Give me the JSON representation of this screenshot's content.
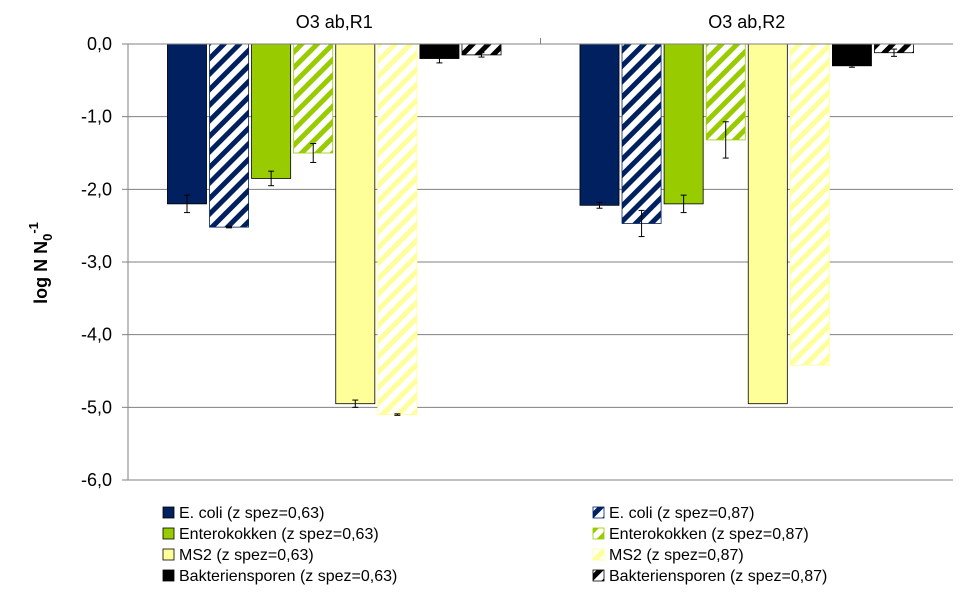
{
  "chart_data": {
    "type": "bar",
    "ylabel": "log N N",
    "ylabel_sub": "0",
    "ylabel_sup": "-1",
    "ylim": [
      -6,
      0
    ],
    "yticks": [
      "0,0",
      "-1,0",
      "-2,0",
      "-3,0",
      "-4,0",
      "-5,0",
      "-6,0"
    ],
    "ytick_values": [
      0,
      -1,
      -2,
      -3,
      -4,
      -5,
      -6
    ],
    "grid": true,
    "legend_position": "bottom",
    "categories": [
      "O3 ab,R1",
      "O3 ab,R2"
    ],
    "series": [
      {
        "name": "E. coli (z spez=0,63)",
        "values": [
          -2.2,
          -2.22
        ],
        "errors": [
          0.12,
          0.04
        ],
        "color": "#002060",
        "pattern": "solid"
      },
      {
        "name": "E. coli  (z spez=0,87)",
        "values": [
          -2.52,
          -2.47
        ],
        "errors": [
          0.01,
          0.18
        ],
        "color": "#002060",
        "pattern": "stripe"
      },
      {
        "name": "Enterokokken (z spez=0,63)",
        "values": [
          -1.85,
          -2.2
        ],
        "errors": [
          0.1,
          0.12
        ],
        "color": "#99CC00",
        "pattern": "solid"
      },
      {
        "name": "Enterokokken (z spez=0,87)",
        "values": [
          -1.5,
          -1.32
        ],
        "errors": [
          0.13,
          0.25
        ],
        "color": "#99CC00",
        "pattern": "stripe"
      },
      {
        "name": "MS2 (z spez=0,63)",
        "values": [
          -4.95,
          -4.95
        ],
        "errors": [
          0.05,
          0.0
        ],
        "color": "#FFFF99",
        "pattern": "solid"
      },
      {
        "name": "MS2 (z spez=0,87)",
        "values": [
          -5.1,
          -4.42
        ],
        "errors": [
          0.01,
          0.0
        ],
        "color": "#FFFF99",
        "pattern": "stripe"
      },
      {
        "name": "Bakteriensporen (z spez=0,63)",
        "values": [
          -0.2,
          -0.3
        ],
        "errors": [
          0.06,
          0.02
        ],
        "color": "#000000",
        "pattern": "solid"
      },
      {
        "name": "Bakteriensporen (z spez=0,87)",
        "values": [
          -0.15,
          -0.12
        ],
        "errors": [
          0.03,
          0.05
        ],
        "color": "#000000",
        "pattern": "stripe"
      }
    ]
  }
}
